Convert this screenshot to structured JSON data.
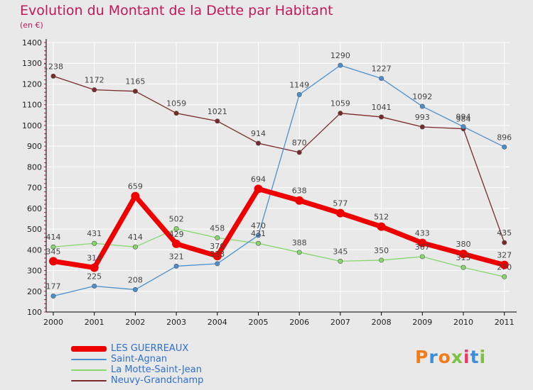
{
  "title": "Evolution du Montant de la Dette par Habitant",
  "subtitle": "(en €)",
  "logo_text": "Proxiti",
  "colors": {
    "title": "#c2185b",
    "grid": "#ffffff",
    "axis": "#000000",
    "legend_text": "#2f6fd0",
    "label_text": "#444444"
  },
  "chart_data": {
    "type": "line",
    "title": "Evolution du Montant de la Dette par Habitant",
    "subtitle": "(en €)",
    "xlabel": "",
    "ylabel": "",
    "x": [
      "2000",
      "2001",
      "2002",
      "2003",
      "2004",
      "2005",
      "2006",
      "2007",
      "2008",
      "2009",
      "2010",
      "2011"
    ],
    "ylim": [
      100,
      1400
    ],
    "yticks": [
      100,
      200,
      300,
      400,
      500,
      600,
      700,
      800,
      900,
      1000,
      1100,
      1200,
      1300,
      1400
    ],
    "grid": true,
    "legend_position": "bottom-left",
    "series": [
      {
        "name": "Neuvy-Grandchamp",
        "color": "#7b2a2a",
        "values": [
          1238,
          1172,
          1165,
          1059,
          1021,
          914,
          870,
          1059,
          1041,
          993,
          984,
          435
        ]
      },
      {
        "name": "La Motte-Saint-Jean",
        "color": "#86d86b",
        "values": [
          414,
          431,
          414,
          502,
          458,
          431,
          388,
          345,
          350,
          367,
          315,
          270
        ]
      },
      {
        "name": "Saint-Agnan",
        "color": "#4a90d0",
        "values": [
          177,
          225,
          208,
          321,
          333,
          470,
          1149,
          1290,
          1227,
          1092,
          994,
          896
        ]
      },
      {
        "name": "LES GUERREAUX",
        "color": "#ee0000",
        "values": [
          345,
          314,
          659,
          429,
          370,
          694,
          638,
          577,
          512,
          433,
          380,
          327
        ]
      }
    ],
    "point_labels": [
      {
        "series": "Neuvy-Grandchamp",
        "values": [
          "1238",
          "1172",
          "1165",
          "1059",
          "1021",
          "914",
          "870",
          "1059",
          "1041",
          "993",
          "984",
          "435"
        ]
      },
      {
        "series": "La Motte-Saint-Jean",
        "values": [
          "414",
          "431",
          "414",
          "502",
          "458",
          "431",
          "388",
          "345",
          "350",
          "367",
          "315",
          "270"
        ]
      },
      {
        "series": "Saint-Agnan",
        "values": [
          "177",
          "225",
          "208",
          "321",
          "333",
          "470",
          "1149",
          "1290",
          "1227",
          "1092",
          "994",
          "896"
        ]
      },
      {
        "series": "LES GUERREAUX",
        "values": [
          "345",
          "314",
          "659",
          "429",
          "370",
          "694",
          "638",
          "577",
          "512",
          "433",
          "380",
          "327"
        ]
      }
    ]
  },
  "legend": [
    {
      "label": "LES GUERREAUX",
      "color": "#ee0000"
    },
    {
      "label": "Saint-Agnan",
      "color": "#4a90d0"
    },
    {
      "label": "La Motte-Saint-Jean",
      "color": "#86d86b"
    },
    {
      "label": "Neuvy-Grandchamp",
      "color": "#7b2a2a"
    }
  ]
}
